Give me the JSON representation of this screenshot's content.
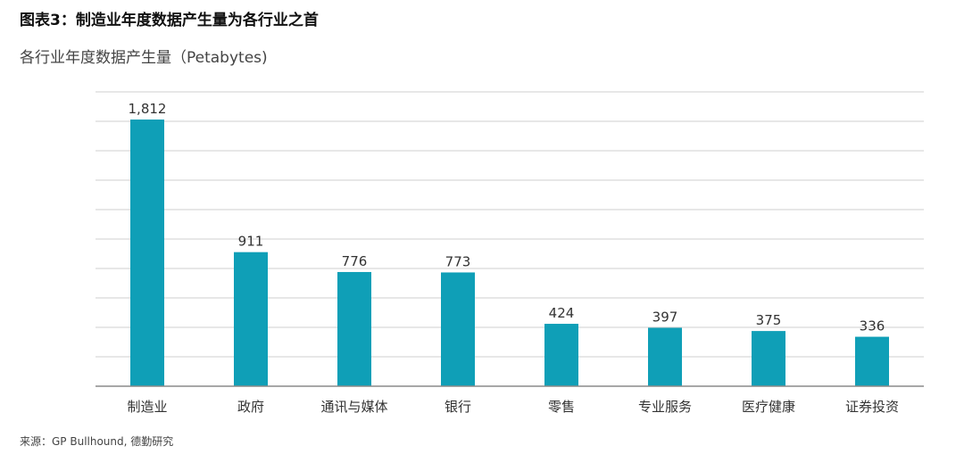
{
  "figure_title": "图表3：制造业年度数据产生量为各行业之首",
  "source_note": "来源：GP Bullhound, 德勤研究",
  "chart_data": {
    "type": "bar",
    "title": "各行业年度数据产生量（Petabytes)",
    "xlabel": "",
    "ylabel": "",
    "categories": [
      "制造业",
      "政府",
      "通讯与媒体",
      "银行",
      "零售",
      "专业服务",
      "医疗健康",
      "证券投资"
    ],
    "values": [
      1812,
      911,
      776,
      773,
      424,
      397,
      375,
      336
    ],
    "data_labels": [
      "1,812",
      "911",
      "776",
      "773",
      "424",
      "397",
      "375",
      "336"
    ],
    "ylim": [
      0,
      2000
    ],
    "grid": true,
    "bar_color": "#0f9fb7"
  }
}
